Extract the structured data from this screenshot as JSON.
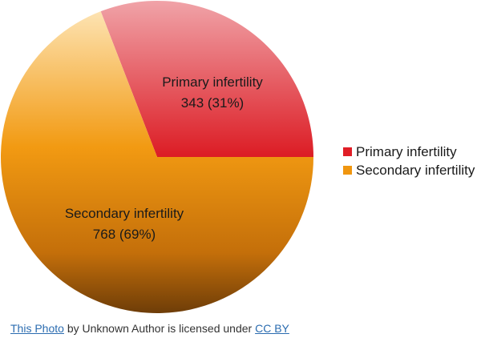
{
  "chart_data": {
    "type": "pie",
    "title": "",
    "categories": [
      "Primary infertility",
      "Secondary infertility"
    ],
    "values": [
      343,
      768
    ],
    "percentages": [
      31,
      69
    ],
    "slice_labels": [
      {
        "name": "Primary infertility",
        "value_text": "343 (31%)"
      },
      {
        "name": "Secondary infertility",
        "value_text": "768 (69%)"
      }
    ],
    "colors": [
      "#e01e26",
      "#f0960f"
    ],
    "legend": {
      "placement": "right",
      "entries": [
        "Primary infertility",
        "Secondary infertility"
      ]
    }
  },
  "credit": {
    "link_text": "This Photo",
    "middle_text": " by Unknown Author is licensed under ",
    "license_text": "CC BY"
  }
}
